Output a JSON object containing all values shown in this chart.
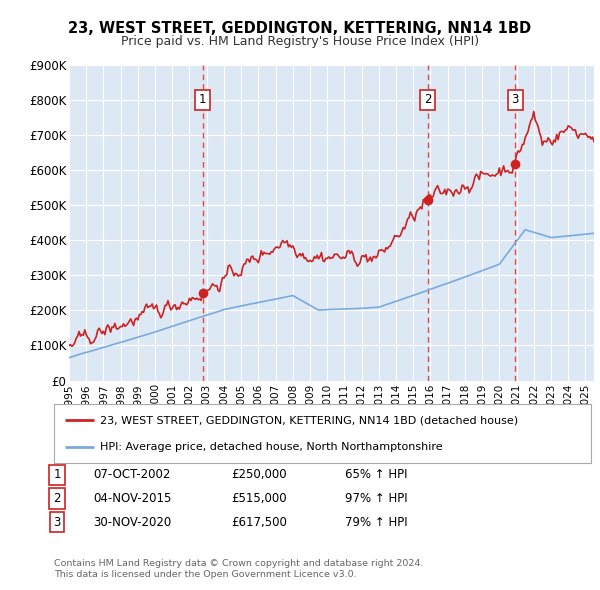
{
  "title": "23, WEST STREET, GEDDINGTON, KETTERING, NN14 1BD",
  "subtitle": "Price paid vs. HM Land Registry's House Price Index (HPI)",
  "bg_color": "#dde8f5",
  "grid_color": "#ffffff",
  "red_color": "#cc2222",
  "blue_color": "#7aaadd",
  "dashed_color": "#ee4444",
  "ylim": [
    0,
    900000
  ],
  "yticks": [
    0,
    100000,
    200000,
    300000,
    400000,
    500000,
    600000,
    700000,
    800000,
    900000
  ],
  "ytick_labels": [
    "£0",
    "£100K",
    "£200K",
    "£300K",
    "£400K",
    "£500K",
    "£600K",
    "£700K",
    "£800K",
    "£900K"
  ],
  "sales": [
    {
      "num": 1,
      "date": "07-OCT-2002",
      "price": 250000,
      "year": 2002.77,
      "pct": "65%",
      "dir": "↑"
    },
    {
      "num": 2,
      "date": "04-NOV-2015",
      "price": 515000,
      "year": 2015.84,
      "pct": "97%",
      "dir": "↑"
    },
    {
      "num": 3,
      "date": "30-NOV-2020",
      "price": 617500,
      "year": 2020.92,
      "pct": "79%",
      "dir": "↑"
    }
  ],
  "legend_line1": "23, WEST STREET, GEDDINGTON, KETTERING, NN14 1BD (detached house)",
  "legend_line2": "HPI: Average price, detached house, North Northamptonshire",
  "footer1": "Contains HM Land Registry data © Crown copyright and database right 2024.",
  "footer2": "This data is licensed under the Open Government Licence v3.0.",
  "xmin": 1995.0,
  "xmax": 2025.5
}
